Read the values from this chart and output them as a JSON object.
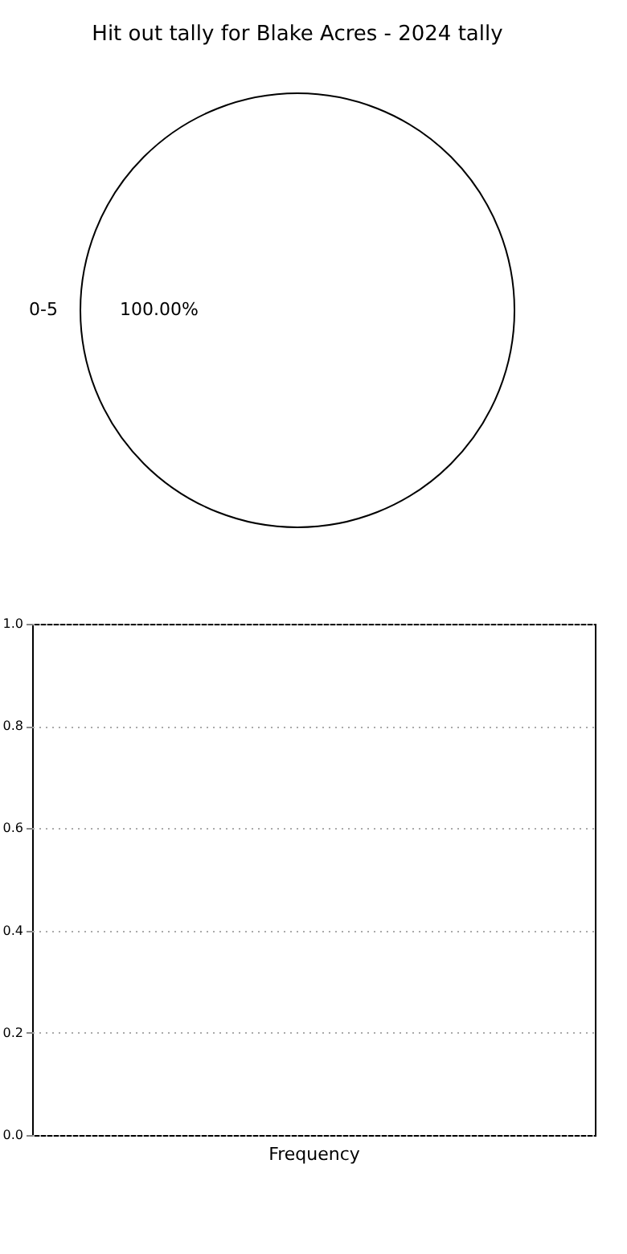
{
  "chart_data": [
    {
      "type": "pie",
      "title": "Hit out tally for Blake Acres - 2024 tally",
      "categories": [
        "0-5"
      ],
      "values": [
        100
      ],
      "colors": [
        "#ffffff"
      ],
      "value_labels": [
        "100.00%"
      ],
      "legend": false
    },
    {
      "type": "bar",
      "xlabel": "Frequency",
      "categories": [
        null
      ],
      "values": [
        0
      ],
      "ylim": [
        0,
        1
      ],
      "yticks": [
        {
          "value": 0,
          "label": "0.0"
        },
        {
          "value": 0.2,
          "label": "0.2"
        },
        {
          "value": 0.4,
          "label": "0.4"
        },
        {
          "value": 0.6,
          "label": "0.6"
        },
        {
          "value": 0.8,
          "label": "0.8"
        },
        {
          "value": 1,
          "label": "1.0"
        }
      ],
      "grid": "y"
    }
  ]
}
